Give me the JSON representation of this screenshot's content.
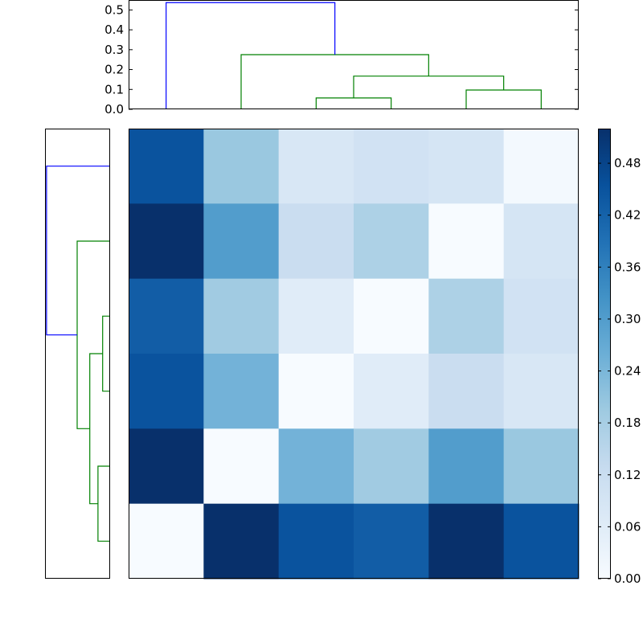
{
  "chart_data": [
    {
      "type": "dendrogram",
      "orientation": "top",
      "ylim": [
        0,
        0.55
      ],
      "ticks": [
        "0.0",
        "0.1",
        "0.2",
        "0.3",
        "0.4",
        "0.5"
      ],
      "tick_values": [
        0,
        0.1,
        0.2,
        0.3,
        0.4,
        0.5
      ],
      "leaf_count": 6,
      "links": [
        {
          "left": 2.5,
          "right": 3.5,
          "left_base": 0,
          "right_base": 0,
          "height": 0.057,
          "color": "#008000"
        },
        {
          "left": 4.5,
          "right": 5.5,
          "left_base": 0,
          "right_base": 0,
          "height": 0.097,
          "color": "#008000"
        },
        {
          "left": 3.0,
          "right": 5.0,
          "left_base": 0.057,
          "right_base": 0.097,
          "height": 0.167,
          "color": "#008000"
        },
        {
          "left": 1.5,
          "right": 4.0,
          "left_base": 0,
          "right_base": 0.167,
          "height": 0.275,
          "color": "#008000"
        },
        {
          "left": 0.5,
          "right": 2.75,
          "left_base": 0,
          "right_base": 0.275,
          "height": 0.537,
          "color": "#0000ff"
        }
      ]
    },
    {
      "type": "dendrogram",
      "orientation": "left",
      "leaf_count": 6,
      "links": [
        {
          "a": 4.5,
          "b": 5.5,
          "a_base": 0,
          "b_base": 0,
          "height": 0.097,
          "color": "#008000"
        },
        {
          "a": 2.5,
          "b": 3.5,
          "a_base": 0,
          "b_base": 0,
          "height": 0.057,
          "color": "#008000"
        },
        {
          "a": 3.0,
          "b": 5.0,
          "a_base": 0.057,
          "b_base": 0.097,
          "height": 0.167,
          "color": "#008000"
        },
        {
          "a": 1.5,
          "b": 4.0,
          "a_base": 0,
          "b_base": 0.167,
          "height": 0.275,
          "color": "#008000"
        },
        {
          "a": 0.5,
          "b": 2.75,
          "a_base": 0,
          "b_base": 0.275,
          "height": 0.537,
          "color": "#0000ff"
        }
      ],
      "xlim": [
        0,
        0.55
      ]
    },
    {
      "type": "heatmap",
      "rows": 6,
      "cols": 6,
      "values": [
        [
          0.45,
          0.2,
          0.08,
          0.1,
          0.09,
          0.01
        ],
        [
          0.52,
          0.3,
          0.12,
          0.17,
          0.0,
          0.09
        ],
        [
          0.43,
          0.19,
          0.06,
          0.0,
          0.17,
          0.1
        ],
        [
          0.45,
          0.25,
          0.0,
          0.06,
          0.12,
          0.08
        ],
        [
          0.52,
          0.0,
          0.25,
          0.19,
          0.3,
          0.2
        ],
        [
          0.0,
          0.52,
          0.45,
          0.43,
          0.52,
          0.45
        ]
      ],
      "colormap": "Blues",
      "vmin": 0,
      "vmax": 0.52
    },
    {
      "type": "colorbar",
      "ticks": [
        "0.00",
        "0.06",
        "0.12",
        "0.18",
        "0.24",
        "0.30",
        "0.36",
        "0.42",
        "0.48"
      ],
      "tick_values": [
        0,
        0.06,
        0.12,
        0.18,
        0.24,
        0.3,
        0.36,
        0.42,
        0.48
      ],
      "vmin": 0,
      "vmax": 0.52
    }
  ]
}
